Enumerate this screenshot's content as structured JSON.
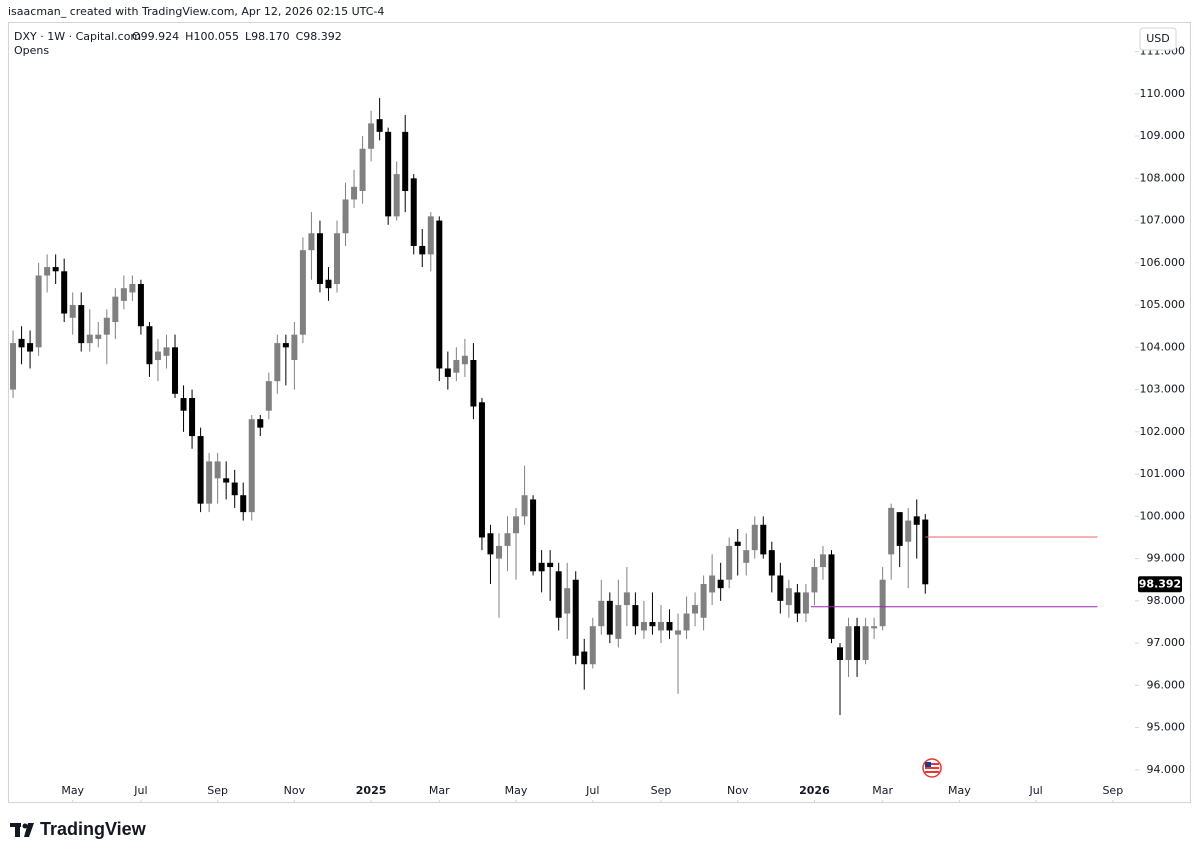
{
  "header": "isaacman_ created with TradingView.com, Apr 12, 2026 02:15 UTC-4",
  "footer": {
    "brand": "TradingView"
  },
  "chart_data": {
    "type": "candlestick",
    "symbol": "DXY · 1W · Capital.com",
    "subtitle": "Opens",
    "currency": "USD",
    "legend": {
      "labels": [
        "O",
        "H",
        "L",
        "C"
      ],
      "value_labels": [
        "99.924",
        "100.055",
        "98.170",
        "98.392"
      ]
    },
    "up_color": "#808080",
    "down_color": "#000000",
    "open": [
      103.0,
      104.2,
      104.1,
      104.0,
      105.7,
      105.9,
      105.8,
      104.7,
      105.0,
      104.1,
      104.2,
      104.3,
      104.6,
      105.1,
      105.3,
      105.5,
      104.5,
      103.7,
      103.8,
      104.0,
      102.8,
      102.8,
      101.9,
      100.3,
      100.9,
      100.9,
      100.8,
      100.5,
      100.1,
      102.3,
      102.5,
      103.2,
      104.1,
      103.7,
      104.3,
      106.3,
      106.7,
      105.6,
      105.5,
      106.7,
      107.5,
      107.7,
      108.7,
      109.4,
      109.1,
      107.1,
      109.1,
      108.0,
      106.4,
      106.2,
      107.0,
      103.5,
      103.4,
      103.6,
      103.7,
      102.7,
      99.6,
      99.0,
      99.3,
      99.6,
      100.0,
      100.4,
      98.9,
      98.9,
      98.7,
      97.7,
      98.5,
      96.8,
      96.5,
      97.4,
      98.0,
      97.1,
      97.9,
      97.9,
      97.3,
      97.5,
      97.3,
      97.5,
      97.2,
      97.3,
      97.7,
      97.6,
      98.2,
      98.5,
      98.5,
      99.4,
      98.9,
      99.2,
      99.8,
      99.2,
      98.6,
      97.9,
      98.2,
      97.7,
      98.2,
      98.8,
      99.1,
      96.9,
      96.6,
      97.4,
      96.6,
      97.35,
      97.4,
      99.1,
      100.1,
      99.4,
      100.0,
      99.924
    ],
    "high": [
      104.4,
      104.5,
      104.4,
      106.0,
      106.2,
      106.2,
      106.1,
      105.3,
      105.3,
      104.9,
      104.6,
      104.9,
      105.4,
      105.7,
      105.7,
      105.6,
      104.6,
      104.2,
      104.3,
      104.3,
      103.1,
      103.0,
      102.1,
      101.5,
      101.5,
      101.3,
      101.1,
      100.8,
      102.4,
      102.4,
      103.4,
      104.3,
      104.3,
      104.6,
      106.6,
      107.2,
      107.0,
      105.9,
      107.0,
      107.9,
      108.2,
      109.0,
      109.6,
      109.9,
      109.2,
      108.4,
      109.5,
      108.1,
      106.8,
      107.2,
      107.1,
      103.9,
      104.0,
      104.2,
      104.1,
      102.8,
      99.8,
      99.6,
      100.0,
      100.2,
      101.2,
      100.5,
      99.2,
      99.2,
      98.9,
      98.9,
      98.7,
      97.1,
      97.6,
      98.5,
      98.2,
      98.5,
      98.8,
      98.2,
      98.0,
      98.2,
      97.9,
      97.8,
      97.7,
      98.1,
      98.2,
      98.6,
      99.1,
      98.9,
      99.5,
      99.7,
      99.6,
      100.0,
      100.0,
      99.4,
      98.9,
      98.5,
      98.4,
      98.4,
      99.0,
      99.3,
      99.2,
      97.0,
      97.6,
      97.6,
      97.6,
      97.6,
      98.8,
      100.3,
      100.1,
      100.2,
      100.4,
      100.055
    ],
    "low": [
      102.8,
      103.6,
      103.5,
      103.8,
      105.3,
      105.5,
      104.6,
      104.3,
      103.9,
      103.9,
      104.0,
      103.6,
      104.2,
      104.9,
      105.1,
      104.3,
      103.3,
      103.2,
      103.5,
      102.8,
      102.0,
      101.6,
      100.1,
      100.1,
      100.3,
      100.4,
      100.2,
      99.9,
      99.9,
      101.9,
      102.3,
      102.9,
      103.1,
      103.0,
      104.1,
      105.6,
      105.3,
      105.1,
      105.3,
      106.4,
      107.3,
      107.4,
      108.4,
      108.9,
      106.9,
      107.0,
      107.2,
      106.2,
      105.9,
      105.8,
      103.2,
      103.0,
      103.2,
      103.3,
      102.3,
      99.2,
      98.4,
      97.6,
      98.7,
      98.5,
      99.8,
      98.6,
      98.2,
      98.0,
      97.3,
      97.1,
      96.5,
      95.9,
      96.4,
      97.2,
      97.0,
      96.9,
      97.4,
      97.2,
      97.1,
      97.2,
      97.0,
      97.1,
      95.8,
      97.1,
      97.4,
      97.3,
      97.9,
      98.0,
      98.3,
      98.6,
      98.6,
      99.0,
      99.0,
      98.2,
      97.7,
      97.6,
      97.5,
      97.5,
      97.9,
      98.5,
      97.0,
      95.3,
      96.2,
      96.2,
      96.5,
      97.1,
      97.3,
      98.5,
      98.8,
      98.3,
      99.0,
      98.17
    ],
    "close": [
      104.1,
      104.0,
      103.9,
      105.7,
      105.9,
      105.8,
      104.8,
      105.0,
      104.1,
      104.3,
      104.3,
      104.7,
      105.2,
      105.4,
      105.5,
      104.5,
      103.6,
      103.9,
      104.0,
      102.9,
      102.5,
      101.9,
      100.3,
      101.3,
      101.3,
      100.8,
      100.5,
      100.1,
      102.3,
      102.1,
      103.2,
      104.1,
      104.0,
      104.3,
      106.3,
      106.7,
      105.5,
      105.4,
      106.7,
      107.5,
      107.8,
      108.7,
      109.3,
      109.1,
      107.1,
      108.1,
      107.7,
      106.4,
      106.2,
      107.1,
      103.5,
      103.3,
      103.7,
      103.8,
      102.6,
      99.5,
      99.1,
      99.3,
      99.6,
      100.0,
      100.5,
      98.7,
      98.7,
      98.8,
      97.6,
      98.3,
      96.7,
      96.5,
      97.4,
      98.0,
      97.2,
      97.9,
      98.2,
      97.4,
      97.5,
      97.4,
      97.5,
      97.3,
      97.3,
      97.7,
      97.9,
      98.4,
      98.6,
      98.3,
      99.3,
      99.3,
      99.2,
      99.8,
      99.1,
      98.6,
      98.0,
      98.3,
      97.7,
      98.2,
      98.8,
      99.1,
      97.1,
      96.6,
      97.4,
      96.6,
      97.4,
      97.4,
      98.5,
      100.2,
      99.3,
      99.9,
      99.8,
      98.392
    ],
    "ylim": [
      93.76,
      111.7
    ],
    "yticks": [
      {
        "value": 94,
        "label": "94.000"
      },
      {
        "value": 95,
        "label": "95.000"
      },
      {
        "value": 96,
        "label": "96.000"
      },
      {
        "value": 97,
        "label": "97.000"
      },
      {
        "value": 98,
        "label": "98.000"
      },
      {
        "value": 99,
        "label": "99.000"
      },
      {
        "value": 100,
        "label": "100.000"
      },
      {
        "value": 101,
        "label": "101.000"
      },
      {
        "value": 102,
        "label": "102.000"
      },
      {
        "value": 103,
        "label": "103.000"
      },
      {
        "value": 104,
        "label": "104.000"
      },
      {
        "value": 105,
        "label": "105.000"
      },
      {
        "value": 106,
        "label": "106.000"
      },
      {
        "value": 107,
        "label": "107.000"
      },
      {
        "value": 108,
        "label": "108.000"
      },
      {
        "value": 109,
        "label": "109.000"
      },
      {
        "value": 110,
        "label": "110.000"
      },
      {
        "value": 111,
        "label": "111.000"
      }
    ],
    "xlim": [
      -0.59,
      131.6
    ],
    "xticks": [
      {
        "value": 7,
        "label": "May"
      },
      {
        "value": 15,
        "label": "Jul"
      },
      {
        "value": 24,
        "label": "Sep"
      },
      {
        "value": 33,
        "label": "Nov"
      },
      {
        "value": 42,
        "label": "2025"
      },
      {
        "value": 50,
        "label": "Mar"
      },
      {
        "value": 59,
        "label": "May"
      },
      {
        "value": 68,
        "label": "Jul"
      },
      {
        "value": 76,
        "label": "Sep"
      },
      {
        "value": 85,
        "label": "Nov"
      },
      {
        "value": 94,
        "label": "2026"
      },
      {
        "value": 102,
        "label": "Mar"
      },
      {
        "value": 111,
        "label": "May"
      },
      {
        "value": 120,
        "label": "Jul"
      },
      {
        "value": 129,
        "label": "Sep"
      }
    ],
    "bold_xticks": [
      "2025",
      "2026"
    ],
    "levels": [
      {
        "value": 99.51,
        "color": "#f06262",
        "start": 107,
        "end": 127.2
      },
      {
        "value": 97.86,
        "color": "#9c27b0",
        "start": 93.6,
        "end": 127.2
      }
    ]
  }
}
